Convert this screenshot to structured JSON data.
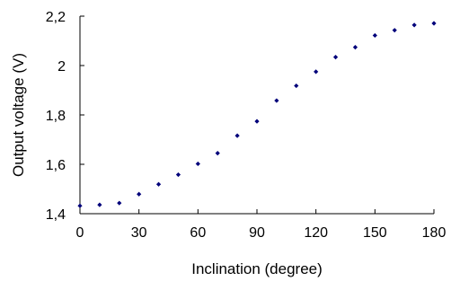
{
  "chart_data": {
    "type": "scatter",
    "title": "",
    "xlabel": "Inclination (degree)",
    "ylabel": "Output voltage (V)",
    "xlim": [
      0,
      180
    ],
    "ylim": [
      1.4,
      2.2
    ],
    "grid": false,
    "legend": "none",
    "x_ticks": [
      "0",
      "30",
      "60",
      "90",
      "120",
      "150",
      "180"
    ],
    "y_ticks": [
      "1,4",
      "1,6",
      "1,8",
      "2",
      "2,2"
    ],
    "marker_color": "#00007a",
    "series": [
      {
        "x": [
          0,
          10,
          20,
          30,
          40,
          50,
          60,
          70,
          80,
          90,
          100,
          110,
          120,
          130,
          140,
          150,
          160,
          170,
          180
        ],
        "values": [
          1.432,
          1.436,
          1.443,
          1.479,
          1.519,
          1.558,
          1.602,
          1.645,
          1.716,
          1.774,
          1.858,
          1.918,
          1.975,
          2.034,
          2.074,
          2.122,
          2.143,
          2.164,
          2.171
        ]
      }
    ]
  }
}
